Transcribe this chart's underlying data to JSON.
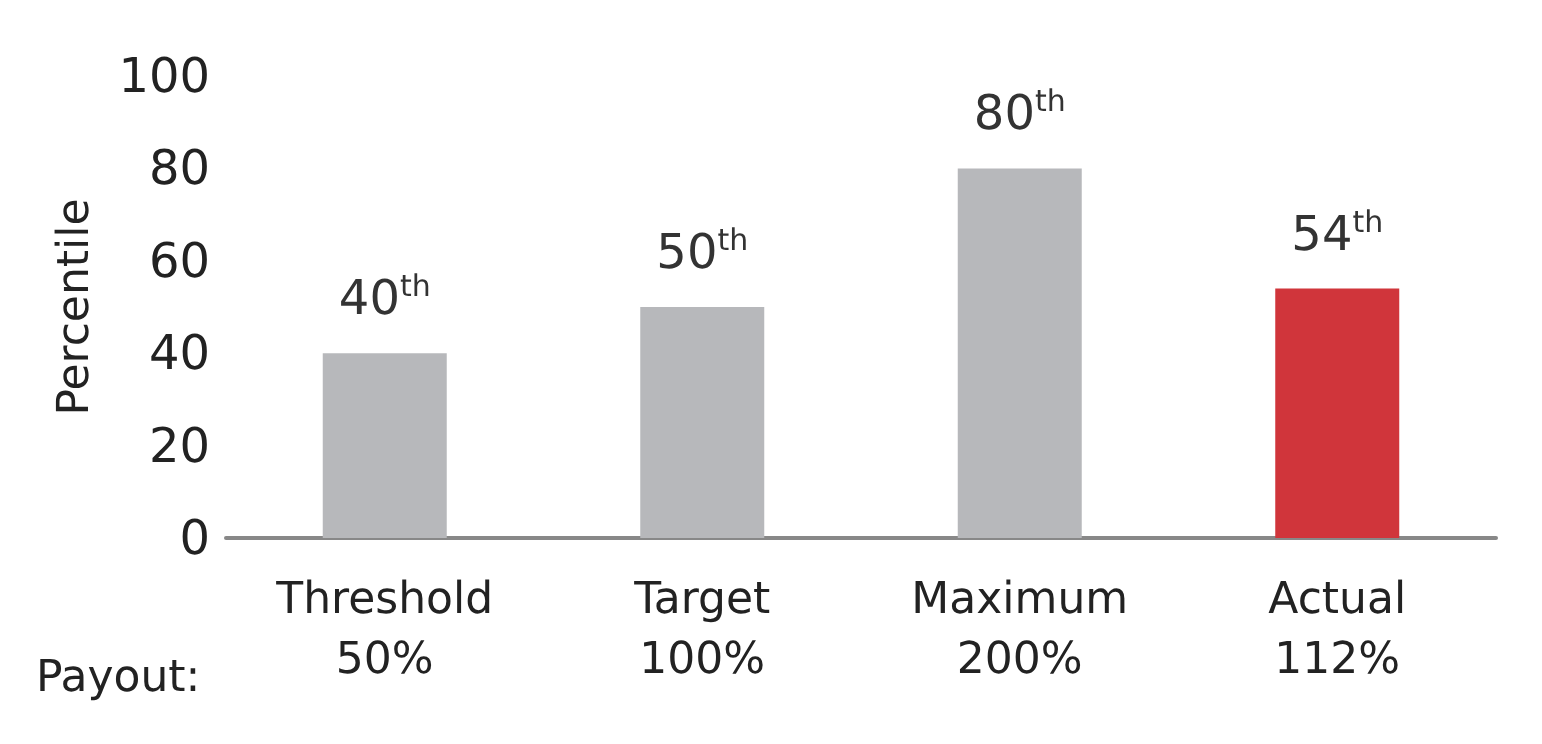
{
  "chart_data": {
    "type": "bar",
    "ylabel": "Percentile",
    "categories": [
      "Threshold\n50%",
      "Target\n100%",
      "Maximum\n200%",
      "Actual\n112%"
    ],
    "values": [
      40,
      50,
      80,
      54
    ],
    "colors": [
      "#b7b8bb",
      "#b7b8bb",
      "#b7b8bb",
      "#d0353b"
    ],
    "value_labels": [
      "40$^{th}$",
      "50$^{th}$",
      "80$^{th}$",
      "54$^{th}$"
    ],
    "ylim": [
      0,
      100
    ],
    "yticks": [
      0,
      20,
      40,
      60,
      80,
      100
    ],
    "grid": false,
    "annotations": [
      "Payout:"
    ]
  }
}
